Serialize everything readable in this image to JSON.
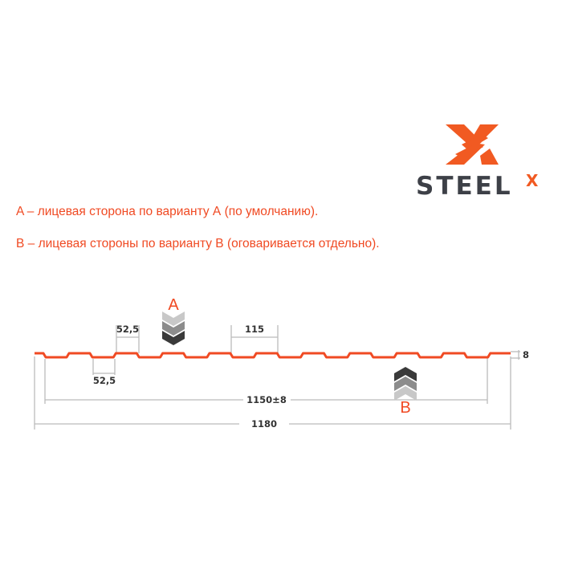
{
  "logo": {
    "text": "STEEL",
    "superscript": "X",
    "brand_color": "#f15a22",
    "text_color": "#3d4047"
  },
  "notes": [
    "A – лицевая сторона по варианту А (по умолчанию).",
    "В – лицевая стороны по варианту В (оговаривается отдельно)."
  ],
  "diagram": {
    "profile_color": "#f04a23",
    "side_a_label": "A",
    "side_b_label": "B",
    "dimensions": {
      "top_flange": "52,5",
      "bottom_flange": "52,5",
      "pitch": "115",
      "height": "8",
      "useful_width": "1150±8",
      "total_width": "1180"
    }
  }
}
